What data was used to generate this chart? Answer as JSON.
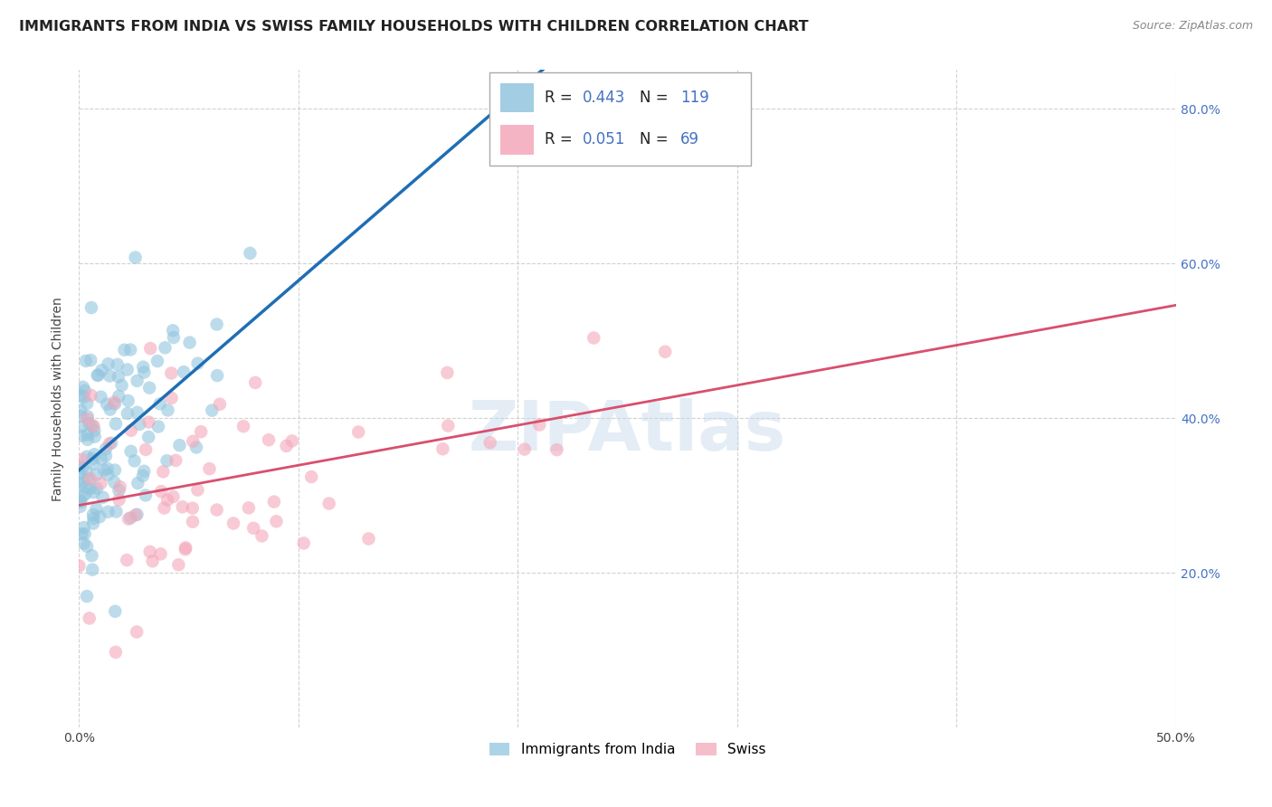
{
  "title": "IMMIGRANTS FROM INDIA VS SWISS FAMILY HOUSEHOLDS WITH CHILDREN CORRELATION CHART",
  "source": "Source: ZipAtlas.com",
  "ylabel": "Family Households with Children",
  "legend_label1": "Immigrants from India",
  "legend_label2": "Swiss",
  "r1": 0.443,
  "n1": 119,
  "r2": 0.051,
  "n2": 69,
  "xmin": 0.0,
  "xmax": 0.5,
  "ymin": 0.0,
  "ymax": 0.85,
  "xticks": [
    0.0,
    0.1,
    0.2,
    0.3,
    0.4,
    0.5
  ],
  "xticklabels": [
    "0.0%",
    "",
    "",
    "",
    "",
    "50.0%"
  ],
  "yticks_right": [
    0.2,
    0.4,
    0.6,
    0.8
  ],
  "yticklabels_right": [
    "20.0%",
    "40.0%",
    "60.0%",
    "80.0%"
  ],
  "color_india": "#92c5de",
  "color_swiss": "#f4a7b9",
  "line_color_india": "#1f6eb5",
  "line_color_swiss": "#d94f6e",
  "background_color": "#ffffff",
  "grid_color": "#cccccc",
  "title_fontsize": 11.5,
  "axis_label_fontsize": 10,
  "tick_fontsize": 10,
  "watermark_text": "ZIPAtlas",
  "seed1": 42,
  "seed2": 7
}
